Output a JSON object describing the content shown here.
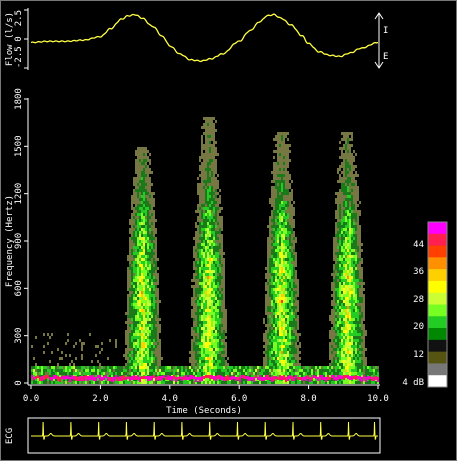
{
  "colors": {
    "background": "#000000",
    "axis": "#ffffff",
    "flow_trace": "#ffff44",
    "ecg_trace": "#ffff44",
    "ecg_border": "#ffffff"
  },
  "flow_panel": {
    "ylabel": "Flow (l/s)",
    "ticks": [
      "2.5",
      "0",
      "-2.5"
    ],
    "inspiration_label": "I",
    "expiration_label": "E",
    "chart_data": {
      "type": "line",
      "ylim": [
        -2.5,
        2.5
      ],
      "x": [
        0.0,
        0.5,
        1.0,
        1.5,
        2.0,
        2.3,
        2.6,
        2.8,
        3.0,
        3.2,
        3.5,
        3.8,
        4.0,
        4.3,
        4.6,
        4.9,
        5.2,
        5.5,
        6.0,
        6.3,
        6.6,
        6.8,
        7.0,
        7.2,
        7.5,
        7.8,
        8.0,
        8.3,
        8.6,
        8.9,
        9.2,
        9.5,
        10.0
      ],
      "y": [
        -0.3,
        -0.2,
        -0.2,
        -0.1,
        0.2,
        0.9,
        1.7,
        2.0,
        2.1,
        1.8,
        1.1,
        0.2,
        -0.6,
        -1.3,
        -1.8,
        -1.9,
        -1.7,
        -1.3,
        -0.2,
        0.7,
        1.5,
        2.0,
        2.1,
        1.8,
        1.2,
        0.3,
        -0.4,
        -1.1,
        -1.4,
        -1.5,
        -1.2,
        -0.8,
        -0.3
      ]
    }
  },
  "spectrogram": {
    "title": "",
    "ylabel": "Frequency (Hertz)",
    "xlabel": "Time (Seconds)",
    "chart_data": {
      "type": "heatmap",
      "xlim": [
        0,
        10
      ],
      "ylim": [
        0,
        1800
      ],
      "x_ticks": [
        "0.0",
        "2.0",
        "4.0",
        "6.0",
        "8.0",
        "10.0"
      ],
      "y_ticks": [
        "0",
        "300",
        "600",
        "900",
        "1200",
        "1500",
        "1800"
      ],
      "bursts": [
        {
          "center": 3.2,
          "width": 1.0,
          "max_freq": 1500
        },
        {
          "center": 5.1,
          "width": 1.0,
          "max_freq": 1700
        },
        {
          "center": 7.2,
          "width": 1.0,
          "max_freq": 1600
        },
        {
          "center": 9.1,
          "width": 1.0,
          "max_freq": 1600
        }
      ]
    }
  },
  "colorbar": {
    "unit_label": "4 dB",
    "labels": [
      "44",
      "36",
      "28",
      "20",
      "12"
    ],
    "colors": [
      "#ff00ff",
      "#ff2050",
      "#ff4000",
      "#ff9000",
      "#ffd000",
      "#ffff00",
      "#ccff33",
      "#77ff22",
      "#22cc22",
      "#008800",
      "#111111",
      "#555511",
      "#777777",
      "#ffffff"
    ]
  },
  "ecg": {
    "label": "ECG",
    "beat_times": [
      0.35,
      1.15,
      1.95,
      2.75,
      3.55,
      4.35,
      5.15,
      5.95,
      6.75,
      7.55,
      8.35,
      9.15,
      9.9
    ]
  }
}
